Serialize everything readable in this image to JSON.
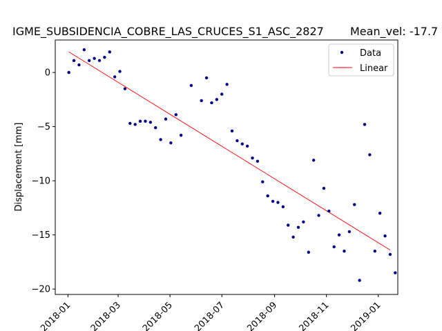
{
  "chart_data": {
    "type": "scatter",
    "title": "IGME_SUBSIDENCIA_COBRE_LAS_CRUCES_S1_ASC_2827",
    "subtitle": "Mean_vel: -17.7",
    "xlabel": "",
    "ylabel": "Displacement [mm]",
    "x_type": "date",
    "xlim": [
      "2017-12-17",
      "2019-01-24"
    ],
    "ylim": [
      -20.5,
      3.0
    ],
    "x_ticks": [
      "2018-01-01",
      "2018-03-01",
      "2018-05-01",
      "2018-07-01",
      "2018-09-01",
      "2018-11-01",
      "2019-01-01"
    ],
    "x_tick_labels": [
      "2018-01",
      "2018-03",
      "2018-05",
      "2018-07",
      "2018-09",
      "2018-11",
      "2019-01"
    ],
    "y_ticks": [
      0,
      -5,
      -10,
      -15,
      -20
    ],
    "y_tick_labels": [
      "0",
      "−5",
      "−10",
      "−15",
      "−20"
    ],
    "grid": false,
    "legend_position": "top-right",
    "series": [
      {
        "name": "Data",
        "kind": "points",
        "color": "#000080",
        "x": [
          "2018-01-02",
          "2018-01-08",
          "2018-01-14",
          "2018-01-20",
          "2018-01-26",
          "2018-02-01",
          "2018-02-07",
          "2018-02-13",
          "2018-02-19",
          "2018-02-25",
          "2018-03-03",
          "2018-03-09",
          "2018-03-15",
          "2018-03-21",
          "2018-03-27",
          "2018-04-02",
          "2018-04-08",
          "2018-04-14",
          "2018-04-20",
          "2018-04-26",
          "2018-05-02",
          "2018-05-08",
          "2018-05-14",
          "2018-05-26",
          "2018-06-07",
          "2018-06-13",
          "2018-06-19",
          "2018-06-25",
          "2018-07-01",
          "2018-07-07",
          "2018-07-13",
          "2018-07-19",
          "2018-07-25",
          "2018-07-31",
          "2018-08-06",
          "2018-08-12",
          "2018-08-18",
          "2018-08-24",
          "2018-08-30",
          "2018-09-05",
          "2018-09-11",
          "2018-09-17",
          "2018-09-23",
          "2018-09-29",
          "2018-10-05",
          "2018-10-11",
          "2018-10-17",
          "2018-10-23",
          "2018-10-29",
          "2018-11-04",
          "2018-11-10",
          "2018-11-16",
          "2018-11-22",
          "2018-11-28",
          "2018-12-04",
          "2018-12-10",
          "2018-12-16",
          "2018-12-22",
          "2018-12-28",
          "2019-01-03",
          "2019-01-09",
          "2019-01-15"
        ],
        "y": [
          0.0,
          1.1,
          0.7,
          2.1,
          1.1,
          1.3,
          1.1,
          1.4,
          1.9,
          -0.4,
          0.1,
          -1.5,
          -4.7,
          -4.8,
          -4.5,
          -4.5,
          -4.6,
          -5.1,
          -6.2,
          -4.3,
          -6.5,
          -3.9,
          -5.8,
          -1.2,
          -2.6,
          -0.5,
          -2.8,
          -2.5,
          -2.0,
          -1.1,
          -5.4,
          -6.3,
          -6.6,
          -6.8,
          -7.9,
          -8.2,
          -10.1,
          -11.4,
          -11.9,
          -12.0,
          -12.4,
          -14.1,
          -15.2,
          -14.3,
          -13.8,
          -16.6,
          -8.1,
          -13.2,
          -10.7,
          -12.8,
          -16.1,
          -15.0,
          -16.5,
          -14.7,
          -12.2,
          -19.2,
          -4.8,
          -7.6,
          -16.5,
          -13.0,
          -15.1,
          -16.8
        ]
      },
      {
        "name": "Linear",
        "kind": "line",
        "color": "#ff0000",
        "x": [
          "2018-01-02",
          "2019-01-15"
        ],
        "y": [
          1.9,
          -16.4
        ]
      }
    ]
  },
  "extra_series": {
    "name": "",
    "kind": "points",
    "color": "#000080",
    "x": [
      "2019-01-21"
    ],
    "y": [
      -18.5
    ]
  }
}
